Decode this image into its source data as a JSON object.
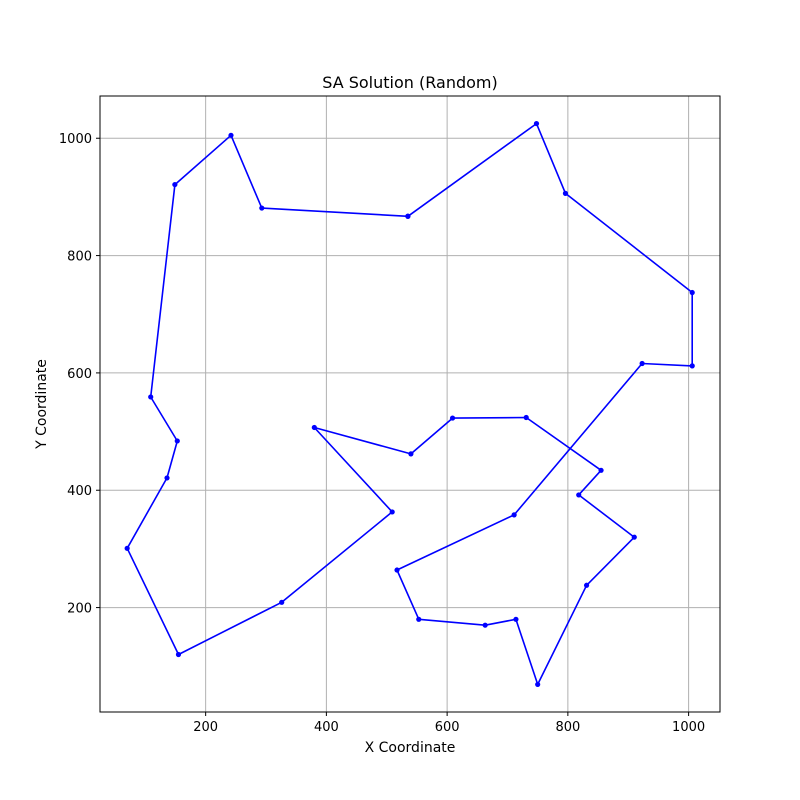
{
  "chart_data": {
    "type": "line",
    "title": "SA Solution (Random)",
    "xlabel": "X Coordinate",
    "ylabel": "Y Coordinate",
    "xlim": [
      25,
      1052
    ],
    "ylim": [
      22,
      1072
    ],
    "xticks": [
      200,
      400,
      600,
      800,
      1000
    ],
    "yticks": [
      200,
      400,
      600,
      800,
      1000
    ],
    "grid": true,
    "line_color": "#0000ff",
    "points": [
      {
        "x": 535,
        "y": 867
      },
      {
        "x": 293,
        "y": 881
      },
      {
        "x": 242,
        "y": 1005
      },
      {
        "x": 149,
        "y": 921
      },
      {
        "x": 109,
        "y": 559
      },
      {
        "x": 153,
        "y": 484
      },
      {
        "x": 136,
        "y": 421
      },
      {
        "x": 70,
        "y": 301
      },
      {
        "x": 155,
        "y": 120
      },
      {
        "x": 326,
        "y": 209
      },
      {
        "x": 509,
        "y": 363
      },
      {
        "x": 380,
        "y": 507
      },
      {
        "x": 540,
        "y": 462
      },
      {
        "x": 609,
        "y": 523
      },
      {
        "x": 731,
        "y": 524
      },
      {
        "x": 855,
        "y": 434
      },
      {
        "x": 818,
        "y": 392
      },
      {
        "x": 910,
        "y": 320
      },
      {
        "x": 831,
        "y": 238
      },
      {
        "x": 750,
        "y": 69
      },
      {
        "x": 714,
        "y": 180
      },
      {
        "x": 663,
        "y": 170
      },
      {
        "x": 553,
        "y": 180
      },
      {
        "x": 517,
        "y": 264
      },
      {
        "x": 711,
        "y": 358
      },
      {
        "x": 923,
        "y": 616
      },
      {
        "x": 1006,
        "y": 612
      },
      {
        "x": 1006,
        "y": 737
      },
      {
        "x": 796,
        "y": 906
      },
      {
        "x": 748,
        "y": 1025
      },
      {
        "x": 535,
        "y": 867
      }
    ]
  }
}
